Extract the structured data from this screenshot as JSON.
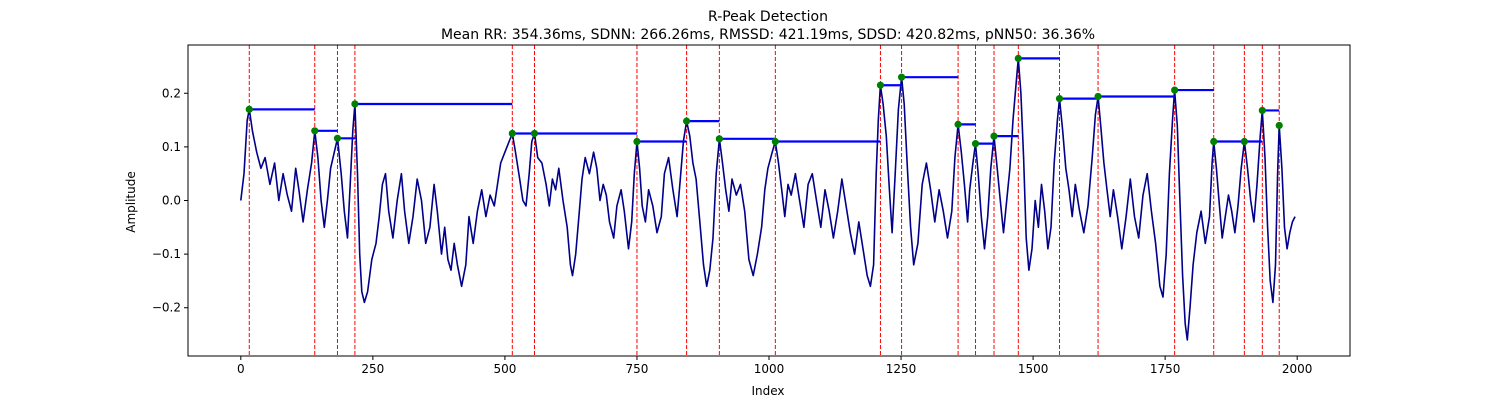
{
  "chart_data": {
    "type": "line",
    "title": "R-Peak Detection",
    "subtitle": "Mean RR: 354.36ms, SDNN: 266.26ms, RMSSD: 421.19ms, SDSD: 420.82ms, pNN50: 36.36%",
    "xlabel": "Index",
    "ylabel": "Amplitude",
    "xlim": [
      -100,
      2100
    ],
    "ylim": [
      -0.29,
      0.29
    ],
    "xticks": [
      0,
      250,
      500,
      750,
      1000,
      1250,
      1500,
      1750,
      2000
    ],
    "yticks": [
      -0.2,
      -0.1,
      0.0,
      0.1,
      0.2
    ],
    "ytick_labels": [
      "−0.2",
      "−0.1",
      "0.0",
      "0.1",
      "0.2"
    ],
    "grid": false,
    "colors": {
      "signal": "#00008b",
      "peak_line": "#ff0000",
      "peak_marker": "#008000",
      "rr_bar": "#0000ff"
    },
    "signal_keypoints": [
      [
        0,
        0.0
      ],
      [
        6,
        0.05
      ],
      [
        12,
        0.15
      ],
      [
        16,
        0.17
      ],
      [
        22,
        0.13
      ],
      [
        30,
        0.09
      ],
      [
        38,
        0.06
      ],
      [
        46,
        0.08
      ],
      [
        55,
        0.03
      ],
      [
        64,
        0.07
      ],
      [
        72,
        0.0
      ],
      [
        80,
        0.05
      ],
      [
        88,
        0.01
      ],
      [
        96,
        -0.02
      ],
      [
        104,
        0.06
      ],
      [
        110,
        0.02
      ],
      [
        118,
        -0.04
      ],
      [
        126,
        0.02
      ],
      [
        134,
        0.07
      ],
      [
        140,
        0.13
      ],
      [
        146,
        0.08
      ],
      [
        152,
        0.0
      ],
      [
        158,
        -0.05
      ],
      [
        164,
        0.0
      ],
      [
        170,
        0.06
      ],
      [
        177,
        0.09
      ],
      [
        183,
        0.116
      ],
      [
        190,
        0.05
      ],
      [
        196,
        -0.02
      ],
      [
        202,
        -0.07
      ],
      [
        207,
        0.03
      ],
      [
        212,
        0.13
      ],
      [
        216,
        0.18
      ],
      [
        221,
        0.05
      ],
      [
        225,
        -0.1
      ],
      [
        229,
        -0.17
      ],
      [
        234,
        -0.19
      ],
      [
        240,
        -0.17
      ],
      [
        248,
        -0.11
      ],
      [
        256,
        -0.08
      ],
      [
        262,
        -0.03
      ],
      [
        268,
        0.03
      ],
      [
        274,
        0.05
      ],
      [
        280,
        -0.02
      ],
      [
        288,
        -0.07
      ],
      [
        296,
        0.0
      ],
      [
        304,
        0.05
      ],
      [
        310,
        -0.02
      ],
      [
        318,
        -0.08
      ],
      [
        326,
        -0.03
      ],
      [
        334,
        0.04
      ],
      [
        342,
        0.0
      ],
      [
        350,
        -0.08
      ],
      [
        358,
        -0.05
      ],
      [
        366,
        0.03
      ],
      [
        372,
        -0.02
      ],
      [
        380,
        -0.1
      ],
      [
        386,
        -0.05
      ],
      [
        392,
        -0.11
      ],
      [
        398,
        -0.13
      ],
      [
        404,
        -0.08
      ],
      [
        410,
        -0.12
      ],
      [
        418,
        -0.16
      ],
      [
        426,
        -0.12
      ],
      [
        432,
        -0.03
      ],
      [
        440,
        -0.08
      ],
      [
        448,
        -0.02
      ],
      [
        456,
        0.02
      ],
      [
        464,
        -0.03
      ],
      [
        472,
        0.01
      ],
      [
        480,
        -0.01
      ],
      [
        486,
        0.03
      ],
      [
        492,
        0.07
      ],
      [
        500,
        0.09
      ],
      [
        508,
        0.11
      ],
      [
        514,
        0.125
      ],
      [
        520,
        0.09
      ],
      [
        528,
        0.04
      ],
      [
        534,
        0.0
      ],
      [
        540,
        -0.01
      ],
      [
        546,
        0.05
      ],
      [
        551,
        0.11
      ],
      [
        556,
        0.125
      ],
      [
        562,
        0.08
      ],
      [
        570,
        0.07
      ],
      [
        578,
        0.03
      ],
      [
        584,
        -0.01
      ],
      [
        590,
        0.04
      ],
      [
        596,
        0.02
      ],
      [
        602,
        0.06
      ],
      [
        610,
        0.0
      ],
      [
        618,
        -0.05
      ],
      [
        624,
        -0.12
      ],
      [
        628,
        -0.14
      ],
      [
        634,
        -0.1
      ],
      [
        640,
        -0.03
      ],
      [
        646,
        0.04
      ],
      [
        652,
        0.08
      ],
      [
        660,
        0.05
      ],
      [
        668,
        0.09
      ],
      [
        674,
        0.06
      ],
      [
        680,
        0.0
      ],
      [
        686,
        0.03
      ],
      [
        692,
        0.01
      ],
      [
        698,
        -0.04
      ],
      [
        706,
        -0.07
      ],
      [
        712,
        -0.01
      ],
      [
        720,
        0.02
      ],
      [
        726,
        -0.02
      ],
      [
        734,
        -0.09
      ],
      [
        740,
        -0.04
      ],
      [
        745,
        0.05
      ],
      [
        750,
        0.11
      ],
      [
        755,
        0.06
      ],
      [
        760,
        -0.01
      ],
      [
        766,
        -0.04
      ],
      [
        772,
        0.02
      ],
      [
        780,
        -0.01
      ],
      [
        788,
        -0.06
      ],
      [
        796,
        -0.03
      ],
      [
        802,
        0.05
      ],
      [
        810,
        0.08
      ],
      [
        818,
        0.02
      ],
      [
        826,
        -0.03
      ],
      [
        832,
        0.04
      ],
      [
        838,
        0.11
      ],
      [
        844,
        0.148
      ],
      [
        850,
        0.12
      ],
      [
        856,
        0.07
      ],
      [
        862,
        0.04
      ],
      [
        870,
        -0.05
      ],
      [
        876,
        -0.12
      ],
      [
        882,
        -0.16
      ],
      [
        888,
        -0.13
      ],
      [
        894,
        -0.07
      ],
      [
        900,
        0.05
      ],
      [
        906,
        0.115
      ],
      [
        912,
        0.07
      ],
      [
        918,
        0.02
      ],
      [
        924,
        -0.02
      ],
      [
        930,
        0.04
      ],
      [
        938,
        0.01
      ],
      [
        946,
        0.03
      ],
      [
        954,
        -0.02
      ],
      [
        962,
        -0.11
      ],
      [
        970,
        -0.14
      ],
      [
        978,
        -0.1
      ],
      [
        986,
        -0.05
      ],
      [
        992,
        0.02
      ],
      [
        998,
        0.06
      ],
      [
        1006,
        0.09
      ],
      [
        1012,
        0.11
      ],
      [
        1018,
        0.07
      ],
      [
        1024,
        0.02
      ],
      [
        1030,
        -0.03
      ],
      [
        1036,
        0.03
      ],
      [
        1042,
        0.01
      ],
      [
        1050,
        0.05
      ],
      [
        1058,
        0.0
      ],
      [
        1066,
        -0.05
      ],
      [
        1074,
        0.03
      ],
      [
        1082,
        0.05
      ],
      [
        1090,
        0.0
      ],
      [
        1098,
        -0.05
      ],
      [
        1106,
        0.02
      ],
      [
        1114,
        -0.02
      ],
      [
        1122,
        -0.07
      ],
      [
        1130,
        -0.02
      ],
      [
        1138,
        0.04
      ],
      [
        1146,
        -0.01
      ],
      [
        1154,
        -0.06
      ],
      [
        1162,
        -0.1
      ],
      [
        1170,
        -0.04
      ],
      [
        1178,
        -0.09
      ],
      [
        1186,
        -0.14
      ],
      [
        1192,
        -0.16
      ],
      [
        1198,
        -0.12
      ],
      [
        1203,
        0.05
      ],
      [
        1207,
        0.15
      ],
      [
        1211,
        0.215
      ],
      [
        1216,
        0.18
      ],
      [
        1222,
        0.12
      ],
      [
        1228,
        0.02
      ],
      [
        1233,
        -0.06
      ],
      [
        1239,
        0.05
      ],
      [
        1245,
        0.17
      ],
      [
        1251,
        0.23
      ],
      [
        1256,
        0.18
      ],
      [
        1262,
        0.06
      ],
      [
        1268,
        -0.05
      ],
      [
        1274,
        -0.12
      ],
      [
        1282,
        -0.08
      ],
      [
        1290,
        0.03
      ],
      [
        1298,
        0.07
      ],
      [
        1306,
        0.02
      ],
      [
        1314,
        -0.04
      ],
      [
        1322,
        0.02
      ],
      [
        1330,
        -0.02
      ],
      [
        1338,
        -0.07
      ],
      [
        1346,
        -0.02
      ],
      [
        1352,
        0.08
      ],
      [
        1358,
        0.142
      ],
      [
        1364,
        0.09
      ],
      [
        1370,
        0.03
      ],
      [
        1376,
        -0.04
      ],
      [
        1380,
        0.02
      ],
      [
        1386,
        0.07
      ],
      [
        1391,
        0.106
      ],
      [
        1396,
        0.05
      ],
      [
        1402,
        -0.03
      ],
      [
        1408,
        -0.09
      ],
      [
        1414,
        -0.03
      ],
      [
        1420,
        0.06
      ],
      [
        1426,
        0.12
      ],
      [
        1432,
        0.06
      ],
      [
        1438,
        0.0
      ],
      [
        1444,
        -0.06
      ],
      [
        1450,
        0.0
      ],
      [
        1456,
        0.06
      ],
      [
        1462,
        0.15
      ],
      [
        1468,
        0.22
      ],
      [
        1472,
        0.265
      ],
      [
        1477,
        0.2
      ],
      [
        1482,
        0.08
      ],
      [
        1487,
        -0.07
      ],
      [
        1492,
        -0.13
      ],
      [
        1498,
        -0.09
      ],
      [
        1504,
        0.0
      ],
      [
        1510,
        -0.05
      ],
      [
        1516,
        0.03
      ],
      [
        1522,
        -0.02
      ],
      [
        1528,
        -0.09
      ],
      [
        1534,
        -0.05
      ],
      [
        1540,
        0.07
      ],
      [
        1546,
        0.15
      ],
      [
        1550,
        0.19
      ],
      [
        1556,
        0.13
      ],
      [
        1562,
        0.06
      ],
      [
        1568,
        0.02
      ],
      [
        1574,
        -0.03
      ],
      [
        1580,
        0.03
      ],
      [
        1588,
        -0.02
      ],
      [
        1596,
        -0.06
      ],
      [
        1604,
        -0.01
      ],
      [
        1612,
        0.08
      ],
      [
        1618,
        0.16
      ],
      [
        1623,
        0.194
      ],
      [
        1628,
        0.14
      ],
      [
        1634,
        0.07
      ],
      [
        1640,
        0.02
      ],
      [
        1646,
        -0.03
      ],
      [
        1652,
        0.02
      ],
      [
        1660,
        -0.03
      ],
      [
        1668,
        -0.09
      ],
      [
        1676,
        -0.03
      ],
      [
        1684,
        0.04
      ],
      [
        1692,
        -0.03
      ],
      [
        1700,
        -0.07
      ],
      [
        1708,
        0.01
      ],
      [
        1716,
        0.05
      ],
      [
        1724,
        -0.02
      ],
      [
        1732,
        -0.08
      ],
      [
        1740,
        -0.16
      ],
      [
        1746,
        -0.18
      ],
      [
        1752,
        -0.1
      ],
      [
        1758,
        0.05
      ],
      [
        1764,
        0.15
      ],
      [
        1768,
        0.206
      ],
      [
        1773,
        0.14
      ],
      [
        1778,
        0.0
      ],
      [
        1783,
        -0.14
      ],
      [
        1788,
        -0.23
      ],
      [
        1792,
        -0.26
      ],
      [
        1797,
        -0.2
      ],
      [
        1803,
        -0.12
      ],
      [
        1810,
        -0.06
      ],
      [
        1818,
        -0.02
      ],
      [
        1826,
        -0.08
      ],
      [
        1834,
        -0.03
      ],
      [
        1839,
        0.07
      ],
      [
        1842,
        0.11
      ],
      [
        1847,
        0.06
      ],
      [
        1852,
        0.0
      ],
      [
        1858,
        -0.07
      ],
      [
        1864,
        -0.03
      ],
      [
        1870,
        0.01
      ],
      [
        1876,
        -0.02
      ],
      [
        1882,
        -0.06
      ],
      [
        1888,
        -0.01
      ],
      [
        1894,
        0.06
      ],
      [
        1900,
        0.11
      ],
      [
        1906,
        0.06
      ],
      [
        1912,
        0.0
      ],
      [
        1918,
        -0.04
      ],
      [
        1924,
        0.03
      ],
      [
        1930,
        0.12
      ],
      [
        1934,
        0.168
      ],
      [
        1939,
        0.08
      ],
      [
        1944,
        -0.05
      ],
      [
        1949,
        -0.15
      ],
      [
        1954,
        -0.19
      ],
      [
        1959,
        -0.12
      ],
      [
        1963,
        0.05
      ],
      [
        1966,
        0.14
      ],
      [
        1971,
        0.06
      ],
      [
        1976,
        -0.05
      ],
      [
        1981,
        -0.09
      ],
      [
        1986,
        -0.06
      ],
      [
        1991,
        -0.04
      ],
      [
        1996,
        -0.03
      ]
    ],
    "peaks": [
      {
        "x": 16,
        "y": 0.17,
        "rr_end": 140
      },
      {
        "x": 140,
        "y": 0.13,
        "rr_end": 183
      },
      {
        "x": 183,
        "y": 0.116,
        "rr_end": 216
      },
      {
        "x": 216,
        "y": 0.18,
        "rr_end": 514
      },
      {
        "x": 514,
        "y": 0.125,
        "rr_end": 556
      },
      {
        "x": 556,
        "y": 0.125,
        "rr_end": 750
      },
      {
        "x": 750,
        "y": 0.11,
        "rr_end": 844
      },
      {
        "x": 844,
        "y": 0.148,
        "rr_end": 906
      },
      {
        "x": 906,
        "y": 0.115,
        "rr_end": 1012
      },
      {
        "x": 1012,
        "y": 0.11,
        "rr_end": 1211
      },
      {
        "x": 1211,
        "y": 0.215,
        "rr_end": 1251
      },
      {
        "x": 1251,
        "y": 0.23,
        "rr_end": 1358
      },
      {
        "x": 1358,
        "y": 0.142,
        "rr_end": 1391
      },
      {
        "x": 1391,
        "y": 0.106,
        "rr_end": 1426
      },
      {
        "x": 1426,
        "y": 0.12,
        "rr_end": 1472
      },
      {
        "x": 1472,
        "y": 0.265,
        "rr_end": 1550
      },
      {
        "x": 1550,
        "y": 0.19,
        "rr_end": 1623
      },
      {
        "x": 1623,
        "y": 0.194,
        "rr_end": 1768
      },
      {
        "x": 1768,
        "y": 0.206,
        "rr_end": 1842
      },
      {
        "x": 1842,
        "y": 0.11,
        "rr_end": 1900
      },
      {
        "x": 1900,
        "y": 0.11,
        "rr_end": 1934
      },
      {
        "x": 1934,
        "y": 0.168,
        "rr_end": 1966
      },
      {
        "x": 1966,
        "y": 0.14,
        "rr_end": null
      }
    ]
  }
}
